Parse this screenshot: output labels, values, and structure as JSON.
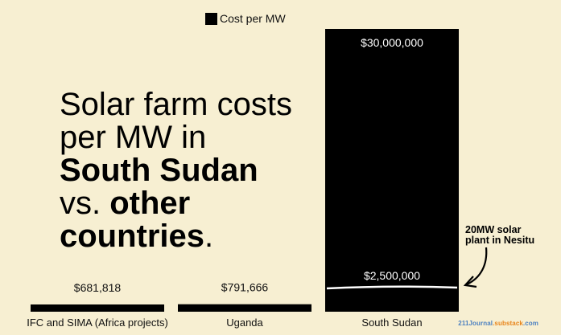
{
  "chart_data": {
    "type": "bar",
    "legend": {
      "label": "Cost per MW",
      "color": "#000000",
      "placement": "top"
    },
    "categories": [
      "IFC and SIMA (Africa projects)",
      "Uganda",
      "South Sudan"
    ],
    "series": [
      {
        "name": "Cost per MW",
        "values": [
          681818,
          791666,
          30000000
        ],
        "data_labels": [
          "$681,818",
          "$791,666",
          "$30,000,000"
        ]
      }
    ],
    "reference_line": {
      "category": "South Sudan",
      "value": 2500000,
      "label": "$2,500,000",
      "color": "#ffffff"
    },
    "ylim": [
      0,
      30000000
    ],
    "grid": false
  },
  "title": {
    "line1": "Solar farm costs",
    "line2": "per MW in",
    "line3_bold": "South Sudan",
    "line4_prefix": "vs. ",
    "line4_bold": "other",
    "line5_bold": "countries",
    "line5_suffix": "."
  },
  "annotation": {
    "line1": "20MW solar",
    "line2": "plant in Nesitu"
  },
  "credit": {
    "part1": "211Journal",
    "part2": ".substack",
    "part3": ".com"
  },
  "colors": {
    "background": "#f7efd2",
    "bar": "#000000",
    "text": "#111111"
  }
}
